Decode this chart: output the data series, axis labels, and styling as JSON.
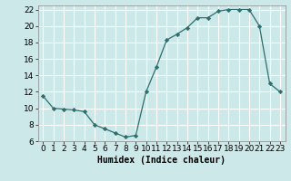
{
  "x": [
    0,
    1,
    2,
    3,
    4,
    5,
    6,
    7,
    8,
    9,
    10,
    11,
    12,
    13,
    14,
    15,
    16,
    17,
    18,
    19,
    20,
    21,
    22,
    23
  ],
  "y": [
    11.5,
    10.0,
    9.9,
    9.8,
    9.6,
    8.0,
    7.5,
    7.0,
    6.5,
    6.7,
    12.0,
    15.0,
    18.3,
    19.0,
    19.8,
    21.0,
    21.0,
    21.8,
    22.0,
    22.0,
    22.0,
    20.0,
    13.0,
    12.0
  ],
  "xlim": [
    -0.5,
    23.5
  ],
  "ylim": [
    6,
    22.5
  ],
  "yticks": [
    6,
    8,
    10,
    12,
    14,
    16,
    18,
    20,
    22
  ],
  "xticks": [
    0,
    1,
    2,
    3,
    4,
    5,
    6,
    7,
    8,
    9,
    10,
    11,
    12,
    13,
    14,
    15,
    16,
    17,
    18,
    19,
    20,
    21,
    22,
    23
  ],
  "xlabel": "Humidex (Indice chaleur)",
  "line_color": "#2d6e6e",
  "marker": "D",
  "marker_size": 2.2,
  "bg_color": "#cce8e8",
  "grid_color": "#ffffff",
  "label_fontsize": 7,
  "tick_fontsize": 6.5
}
